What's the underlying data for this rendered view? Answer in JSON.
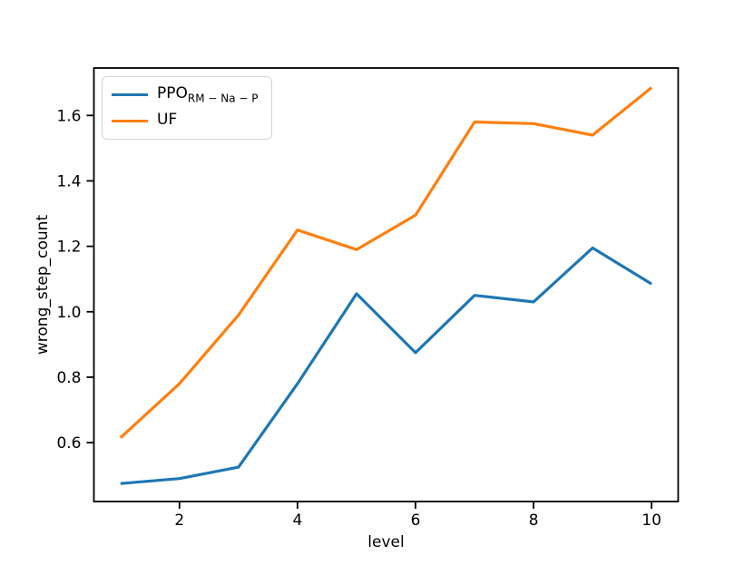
{
  "chart_data": {
    "type": "line",
    "x": [
      1,
      2,
      3,
      4,
      5,
      6,
      7,
      8,
      9,
      10
    ],
    "series": [
      {
        "name": "PPO_RM-Na-P",
        "label_main": "PPO",
        "label_sub": "RM − Na − P",
        "color": "#1f77b4",
        "values": [
          0.475,
          0.49,
          0.525,
          0.78,
          1.055,
          0.875,
          1.05,
          1.03,
          1.195,
          1.085
        ]
      },
      {
        "name": "UF",
        "label_main": "UF",
        "label_sub": "",
        "color": "#ff7f0e",
        "values": [
          0.615,
          0.78,
          0.99,
          1.25,
          1.19,
          1.295,
          1.58,
          1.575,
          1.54,
          1.685
        ]
      }
    ],
    "title": "",
    "xlabel": "level",
    "ylabel": "wrong_step_count",
    "xlim": [
      0.55,
      10.45
    ],
    "ylim": [
      0.42,
      1.745
    ],
    "xticks": [
      2,
      4,
      6,
      8,
      10
    ],
    "yticks": [
      0.6,
      0.8,
      1.0,
      1.2,
      1.4,
      1.6
    ],
    "grid": false,
    "legend_position": "upper-left"
  },
  "colors": {
    "axis": "#000000",
    "background": "#ffffff",
    "legend_border": "#d5d5d5"
  }
}
